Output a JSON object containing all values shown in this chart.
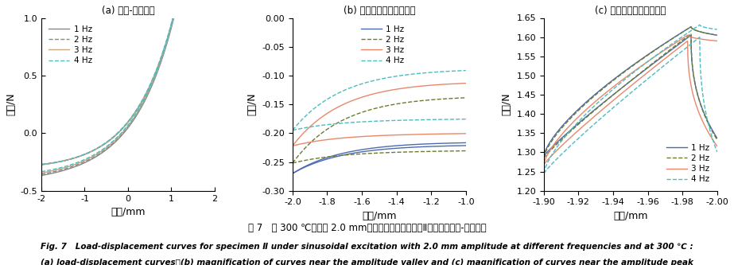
{
  "fig_title_cn": "图 7   在 300 ℃，振幅 2.0 mm，不同频率激励作用下Ⅱ类试样的载荷-位移曲线",
  "fig_title_en": "Fig. 7  Load-displacement curves for specimen Ⅱ under sinusoidal excitation with 2.0 mm amplitude at different frequencies and at 300 ℃ :",
  "fig_title_en2": "(a) load-displacement curves；(b) magnification of curves near the amplitude valley and (c) magnification of curves near the amplitude peak",
  "subplot_labels": [
    "(a) 载荷-位移曲线",
    "(b) 振幅谷値附近曲线放大",
    "(c) 振幅峰値附近曲线放大"
  ],
  "ylabel": "载荷/N",
  "xlabel": "位移/mm",
  "colors": {
    "1hz": "#4c6baf",
    "2hz": "#6b7c2e",
    "3hz": "#e8886a",
    "4hz": "#4bbcbf"
  },
  "colors_a": {
    "1hz": "#888888",
    "2hz": "#888888",
    "3hz": "#c8a882",
    "4hz": "#4bbcbf"
  },
  "panel_a": {
    "xlim": [
      -2.0,
      2.0
    ],
    "ylim": [
      -0.5,
      1.0
    ],
    "xticks": [
      -2.0,
      -1.0,
      0.0,
      1.0,
      2.0
    ],
    "yticks": [
      -0.5,
      0.0,
      0.5,
      1.0
    ]
  },
  "panel_b": {
    "xlim": [
      -2.0,
      -1.0
    ],
    "ylim": [
      -0.3,
      0.0
    ],
    "xticks": [
      -2.0,
      -1.8,
      -1.6,
      -1.4,
      -1.2,
      -1.0
    ],
    "yticks": [
      0.0,
      -0.05,
      -0.1,
      -0.15,
      -0.2,
      -0.25,
      -0.3
    ]
  },
  "panel_c": {
    "xlim": [
      -2.0,
      -1.9
    ],
    "ylim": [
      1.2,
      1.65
    ],
    "xticks": [
      -1.9,
      -1.92,
      -1.94,
      -1.96,
      -1.98,
      -2.0
    ],
    "yticks": [
      1.2,
      1.25,
      1.3,
      1.35,
      1.4,
      1.45,
      1.5,
      1.55,
      1.6,
      1.65
    ]
  }
}
